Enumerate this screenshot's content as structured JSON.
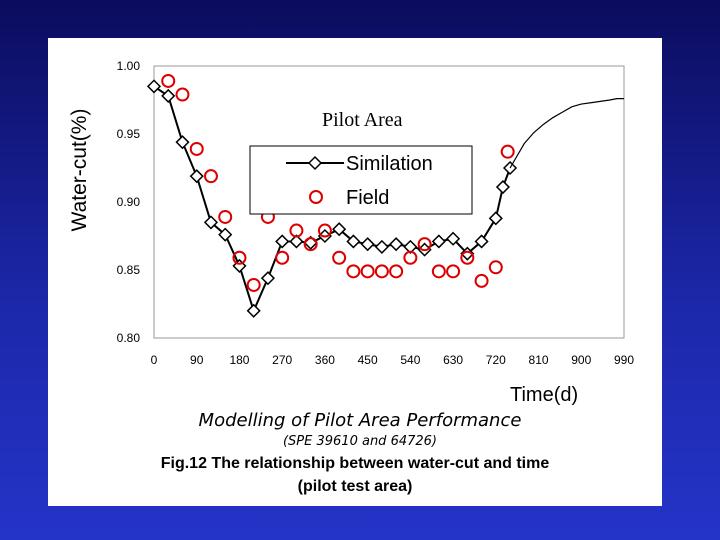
{
  "slide": {
    "title": "Modelling of Pilot Area Performance",
    "subtitle": "(SPE 39610 and 64726)",
    "caption_line1": "Fig.12 The relationship between water-cut and time",
    "caption_line2": "(pilot test area)",
    "background_color": "#1c27a8"
  },
  "chart_data": {
    "type": "line",
    "ylabel": "Water-cut(%)",
    "xlabel": "Time(d)",
    "annotation": "Pilot Area",
    "x_ticks": [
      "0",
      "90",
      "180",
      "270",
      "360",
      "450",
      "540",
      "630",
      "720",
      "810",
      "900",
      "990"
    ],
    "y_ticks": [
      "1.00",
      "0.95",
      "0.90",
      "0.85",
      "0.80"
    ],
    "xlim": [
      0,
      990
    ],
    "ylim": [
      0.8,
      1.0
    ],
    "grid": false,
    "legend": {
      "placement": "center",
      "entries": [
        "Similation",
        "Field"
      ]
    },
    "series": [
      {
        "name": "Similation",
        "marker": "diamond",
        "color": "#000000",
        "x": [
          0,
          30,
          60,
          90,
          120,
          150,
          180,
          210,
          240,
          270,
          300,
          330,
          360,
          390,
          420,
          450,
          480,
          510,
          540,
          570,
          600,
          630,
          660,
          690,
          720,
          735,
          750
        ],
        "y": [
          0.985,
          0.978,
          0.944,
          0.919,
          0.885,
          0.876,
          0.853,
          0.82,
          0.844,
          0.871,
          0.871,
          0.87,
          0.875,
          0.88,
          0.871,
          0.869,
          0.867,
          0.869,
          0.867,
          0.865,
          0.871,
          0.873,
          0.862,
          0.871,
          0.888,
          0.911,
          0.925
        ]
      },
      {
        "name": "Field",
        "marker": "circle",
        "color": "#dd0000",
        "x": [
          30,
          60,
          90,
          120,
          150,
          180,
          210,
          240,
          270,
          300,
          330,
          360,
          390,
          420,
          450,
          480,
          510,
          540,
          570,
          600,
          630,
          660,
          690,
          720,
          745
        ],
        "y": [
          0.989,
          0.979,
          0.939,
          0.919,
          0.889,
          0.859,
          0.839,
          0.889,
          0.859,
          0.879,
          0.869,
          0.879,
          0.859,
          0.849,
          0.849,
          0.849,
          0.849,
          0.859,
          0.869,
          0.849,
          0.849,
          0.859,
          0.842,
          0.852,
          0.937
        ]
      },
      {
        "name": "",
        "marker": "none",
        "color": "#000000",
        "x": [
          750,
          765,
          780,
          800,
          820,
          840,
          860,
          880,
          900,
          920,
          940,
          960,
          975,
          990
        ],
        "y": [
          0.925,
          0.934,
          0.943,
          0.951,
          0.957,
          0.962,
          0.966,
          0.97,
          0.972,
          0.973,
          0.974,
          0.975,
          0.976,
          0.976
        ]
      }
    ]
  }
}
